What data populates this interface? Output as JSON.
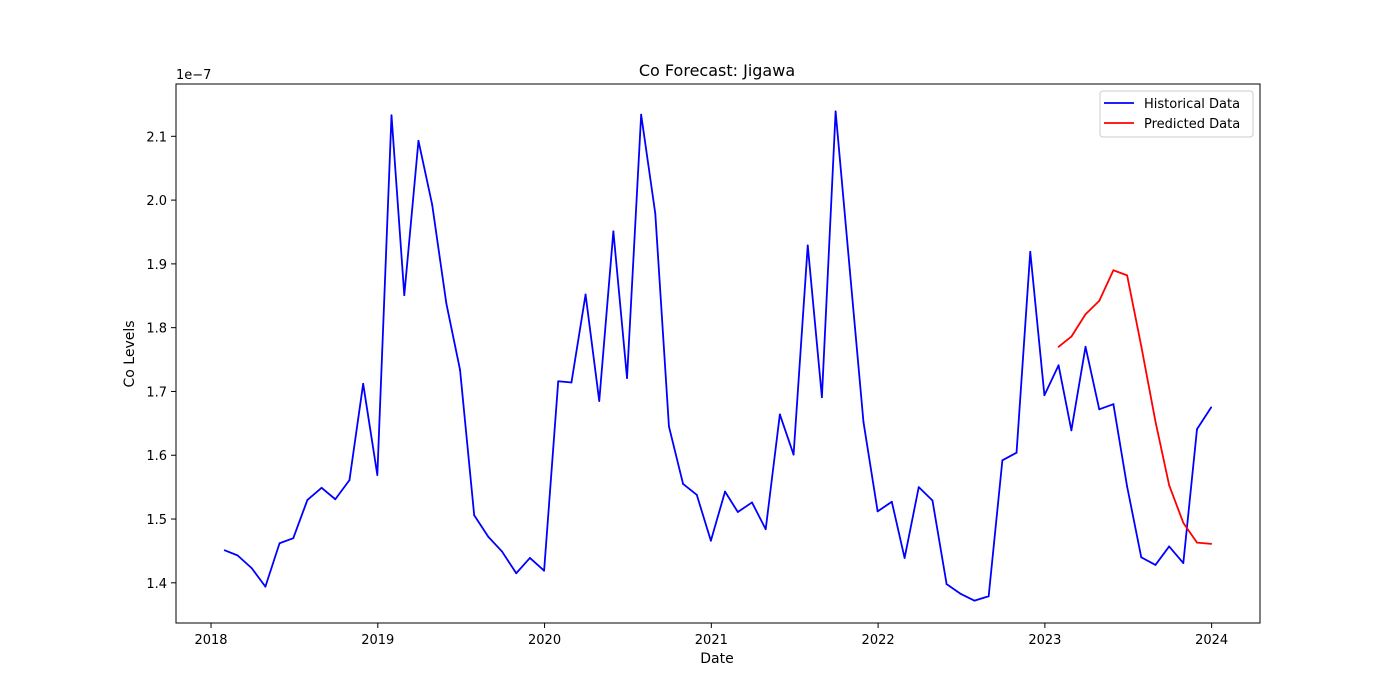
{
  "chart_data": {
    "type": "line",
    "title": "Co Forecast: Jigawa",
    "xlabel": "Date",
    "ylabel": "Co Levels",
    "y_offset_label": "1e−7",
    "y_scale_factor": 1e-07,
    "xlim": [
      2017.79,
      2024.29
    ],
    "ylim": [
      1.337,
      2.182
    ],
    "x_ticks": [
      2018,
      2019,
      2020,
      2021,
      2022,
      2023,
      2024
    ],
    "x_tick_labels": [
      "2018",
      "2019",
      "2020",
      "2021",
      "2022",
      "2023",
      "2024"
    ],
    "y_ticks": [
      1.4,
      1.5,
      1.6,
      1.7,
      1.8,
      1.9,
      2.0,
      2.1
    ],
    "y_tick_labels": [
      "1.4",
      "1.5",
      "1.6",
      "1.7",
      "1.8",
      "1.9",
      "2.0",
      "2.1"
    ],
    "grid": false,
    "legend_position": "top-right",
    "series": [
      {
        "name": "Historical Data",
        "color": "#0000ff",
        "x": [
          "2018-01-31",
          "2018-02-28",
          "2018-03-31",
          "2018-04-30",
          "2018-05-31",
          "2018-06-30",
          "2018-07-31",
          "2018-08-31",
          "2018-09-30",
          "2018-10-31",
          "2018-11-30",
          "2018-12-31",
          "2019-01-31",
          "2019-02-28",
          "2019-03-31",
          "2019-04-30",
          "2019-05-31",
          "2019-06-30",
          "2019-07-31",
          "2019-08-31",
          "2019-09-30",
          "2019-10-31",
          "2019-11-30",
          "2019-12-31",
          "2020-01-31",
          "2020-02-29",
          "2020-03-31",
          "2020-04-30",
          "2020-05-31",
          "2020-06-30",
          "2020-07-31",
          "2020-08-31",
          "2020-09-30",
          "2020-10-31",
          "2020-11-30",
          "2020-12-31",
          "2021-01-31",
          "2021-02-28",
          "2021-03-31",
          "2021-04-30",
          "2021-05-31",
          "2021-06-30",
          "2021-07-31",
          "2021-08-31",
          "2021-09-30",
          "2021-10-31",
          "2021-11-30",
          "2021-12-31",
          "2022-01-31",
          "2022-02-28",
          "2022-03-31",
          "2022-04-30",
          "2022-05-31",
          "2022-06-30",
          "2022-07-31",
          "2022-08-31",
          "2022-09-30",
          "2022-10-31",
          "2022-11-30",
          "2022-12-31",
          "2023-01-31",
          "2023-02-28",
          "2023-03-31",
          "2023-04-30",
          "2023-05-31",
          "2023-06-30",
          "2023-07-31",
          "2023-08-31",
          "2023-09-30",
          "2023-10-31",
          "2023-11-30",
          "2023-12-31"
        ],
        "values": [
          1.451,
          1.443,
          1.423,
          1.394,
          1.462,
          1.47,
          1.53,
          1.549,
          1.531,
          1.561,
          1.712,
          1.569,
          2.133,
          1.851,
          2.093,
          1.993,
          1.838,
          1.734,
          1.506,
          1.472,
          1.449,
          1.415,
          1.439,
          1.419,
          1.716,
          1.714,
          1.852,
          1.685,
          1.951,
          1.721,
          2.134,
          1.979,
          1.645,
          1.555,
          1.538,
          1.466,
          1.543,
          1.511,
          1.526,
          1.484,
          1.664,
          1.601,
          1.929,
          1.691,
          2.139,
          1.891,
          1.652,
          1.512,
          1.527,
          1.439,
          1.55,
          1.529,
          1.398,
          1.383,
          1.372,
          1.379,
          1.592,
          1.604,
          1.919,
          1.694,
          1.741,
          1.639,
          1.77,
          1.672,
          1.68,
          1.551,
          1.44,
          1.428,
          1.457,
          1.431,
          1.641,
          1.675
        ]
      },
      {
        "name": "Predicted Data",
        "color": "#ff0000",
        "x": [
          "2023-01-31",
          "2023-02-28",
          "2023-03-31",
          "2023-04-30",
          "2023-05-31",
          "2023-06-30",
          "2023-07-31",
          "2023-08-31",
          "2023-09-30",
          "2023-10-31",
          "2023-11-30",
          "2023-12-31"
        ],
        "values": [
          1.77,
          1.786,
          1.821,
          1.842,
          1.89,
          1.882,
          1.771,
          1.653,
          1.553,
          1.494,
          1.463,
          1.461
        ]
      }
    ]
  }
}
